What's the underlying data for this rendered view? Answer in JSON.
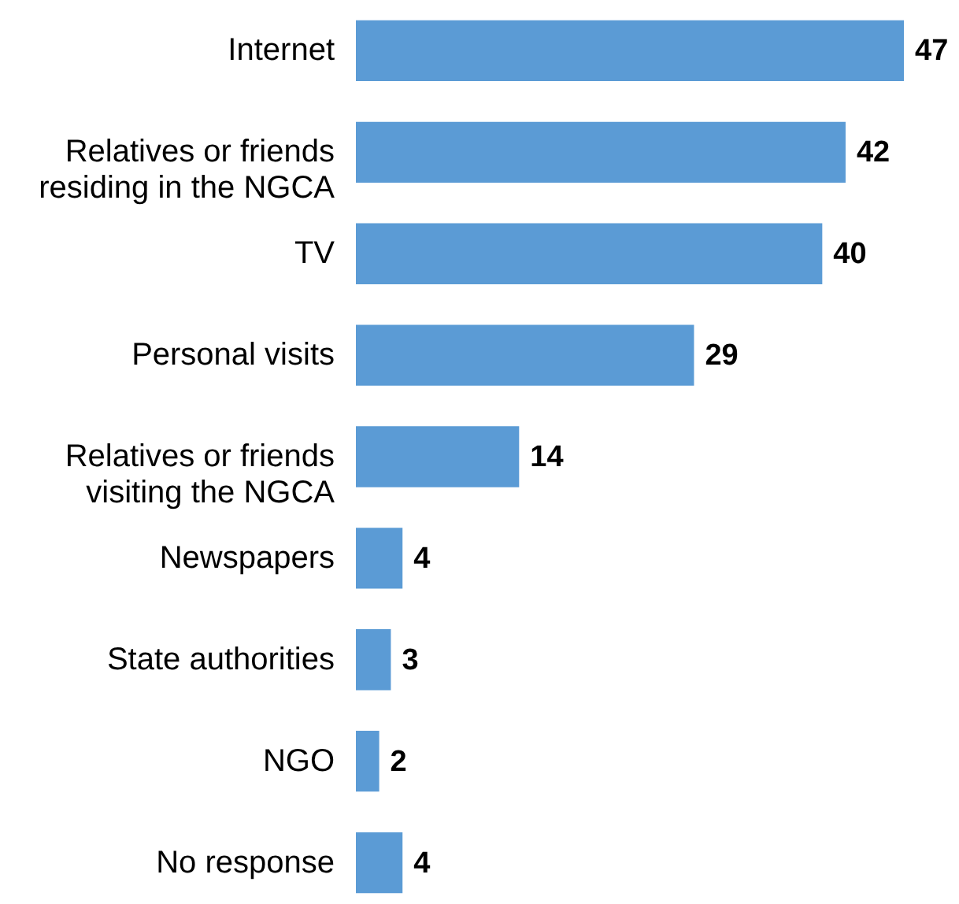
{
  "chart_data": {
    "type": "bar",
    "orientation": "horizontal",
    "categories": [
      "Internet",
      "Relatives or friends residing in the NGCA",
      "TV",
      "Personal visits",
      "Relatives or friends visiting the NGCA",
      "Newspapers",
      "State authorities",
      "NGO",
      "No response"
    ],
    "values": [
      47,
      42,
      40,
      29,
      14,
      4,
      3,
      2,
      4
    ],
    "color": "#5b9bd5",
    "data_labels": true,
    "grid": false
  }
}
